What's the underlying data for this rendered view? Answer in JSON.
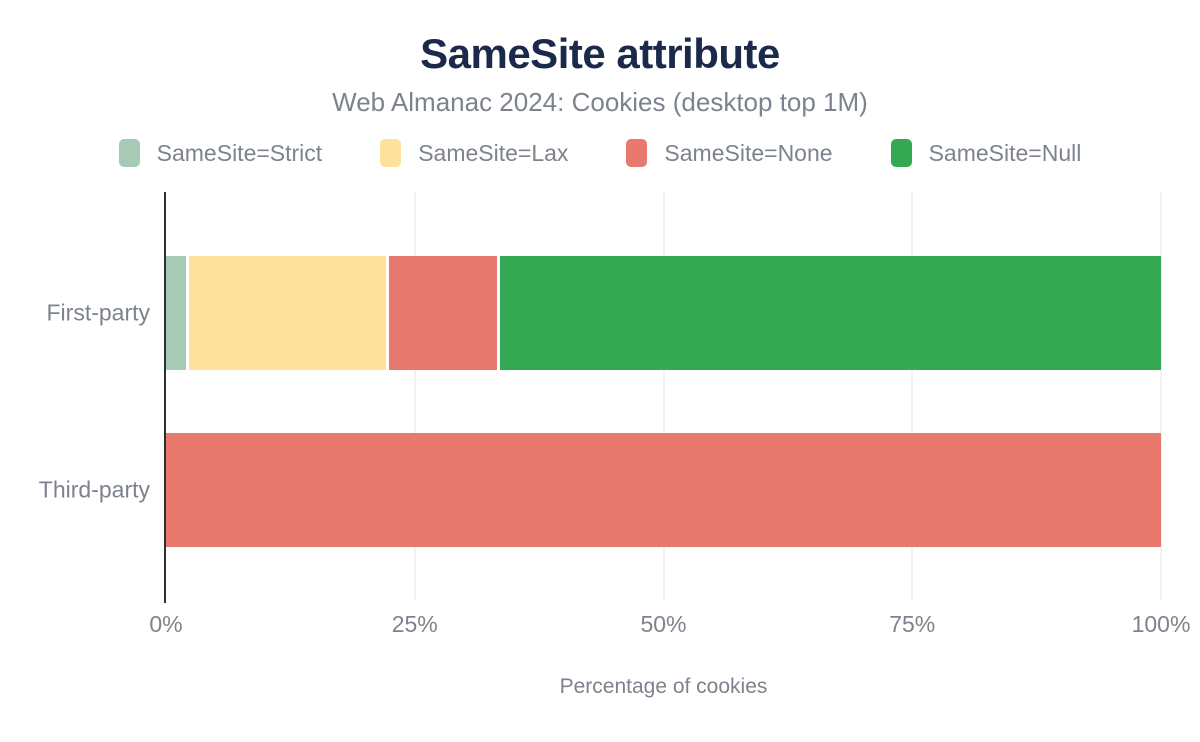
{
  "chart_data": {
    "type": "bar",
    "orientation": "horizontal",
    "stacked": true,
    "title": "SameSite attribute",
    "subtitle": "Web Almanac 2024: Cookies (desktop top 1M)",
    "xlabel": "Percentage of cookies",
    "xlim": [
      0,
      100
    ],
    "x_ticks": [
      "0%",
      "25%",
      "50%",
      "75%",
      "100%"
    ],
    "x_tick_positions": [
      0,
      25,
      50,
      75,
      100
    ],
    "grid": "vertical-light",
    "legend_position": "top",
    "categories": [
      "First-party",
      "Third-party"
    ],
    "series": [
      {
        "name": "SameSite=Strict",
        "color": "#a7cab6",
        "values": [
          2,
          0
        ]
      },
      {
        "name": "SameSite=Lax",
        "color": "#fde29c",
        "values": [
          20,
          0
        ]
      },
      {
        "name": "SameSite=None",
        "color": "#e7796f",
        "values": [
          11,
          100
        ]
      },
      {
        "name": "SameSite=Null",
        "color": "#34a853",
        "values": [
          67,
          0
        ]
      }
    ]
  },
  "style_colors": {
    "title": "#1b2a4a",
    "text_gray": "#7d838d",
    "axis_line": "#2e2e2e",
    "gridline": "#f2f2f2",
    "background": "#ffffff"
  }
}
